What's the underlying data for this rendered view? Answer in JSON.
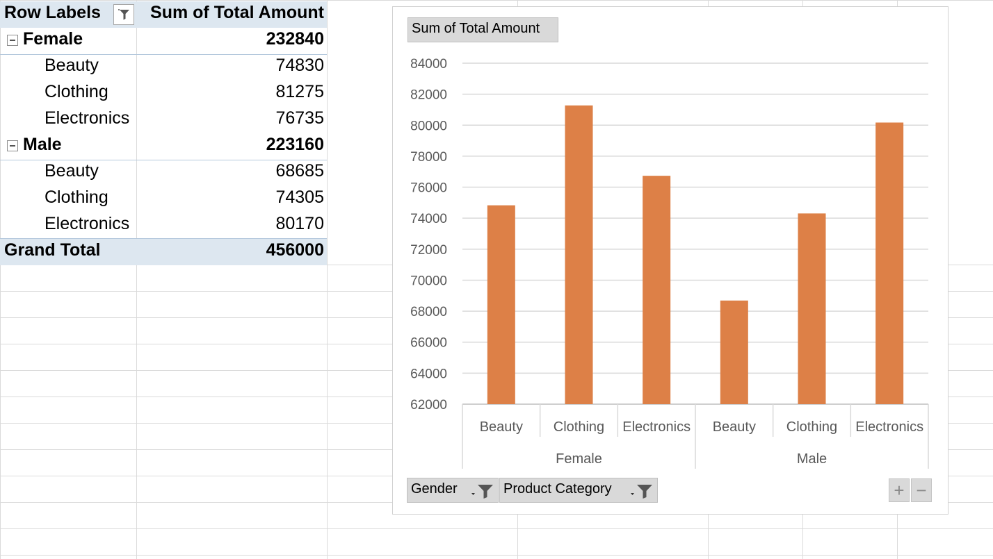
{
  "pivot": {
    "header": {
      "row_labels": "Row Labels",
      "sum_label": "Sum of Total Amount"
    },
    "groups": [
      {
        "name": "Female",
        "total": "232840",
        "items": [
          {
            "label": "Beauty",
            "value": "74830"
          },
          {
            "label": "Clothing",
            "value": "81275"
          },
          {
            "label": "Electronics",
            "value": "76735"
          }
        ]
      },
      {
        "name": "Male",
        "total": "223160",
        "items": [
          {
            "label": "Beauty",
            "value": "68685"
          },
          {
            "label": "Clothing",
            "value": "74305"
          },
          {
            "label": "Electronics",
            "value": "80170"
          }
        ]
      }
    ],
    "grand_total": {
      "label": "Grand Total",
      "value": "456000"
    }
  },
  "chart": {
    "value_field_button": "Sum of Total Amount",
    "axis_field_buttons": [
      {
        "label": "Gender"
      },
      {
        "label": "Product Category"
      }
    ],
    "zoom": {
      "plus": "+",
      "minus": "−"
    }
  },
  "chart_data": {
    "type": "bar",
    "categories": [
      "Beauty",
      "Clothing",
      "Electronics",
      "Beauty",
      "Clothing",
      "Electronics"
    ],
    "groups": [
      {
        "name": "Female",
        "span": [
          0,
          2
        ]
      },
      {
        "name": "Male",
        "span": [
          3,
          5
        ]
      }
    ],
    "values": [
      74830,
      81275,
      76735,
      68685,
      74305,
      80170
    ],
    "ylim": [
      62000,
      84000
    ],
    "yticks": [
      62000,
      64000,
      66000,
      68000,
      70000,
      72000,
      74000,
      76000,
      78000,
      80000,
      82000,
      84000
    ],
    "grid": true,
    "bar_color": "#dd8047"
  },
  "colors": {
    "header_fill": "#dde7f0",
    "bar": "#dd8047"
  }
}
